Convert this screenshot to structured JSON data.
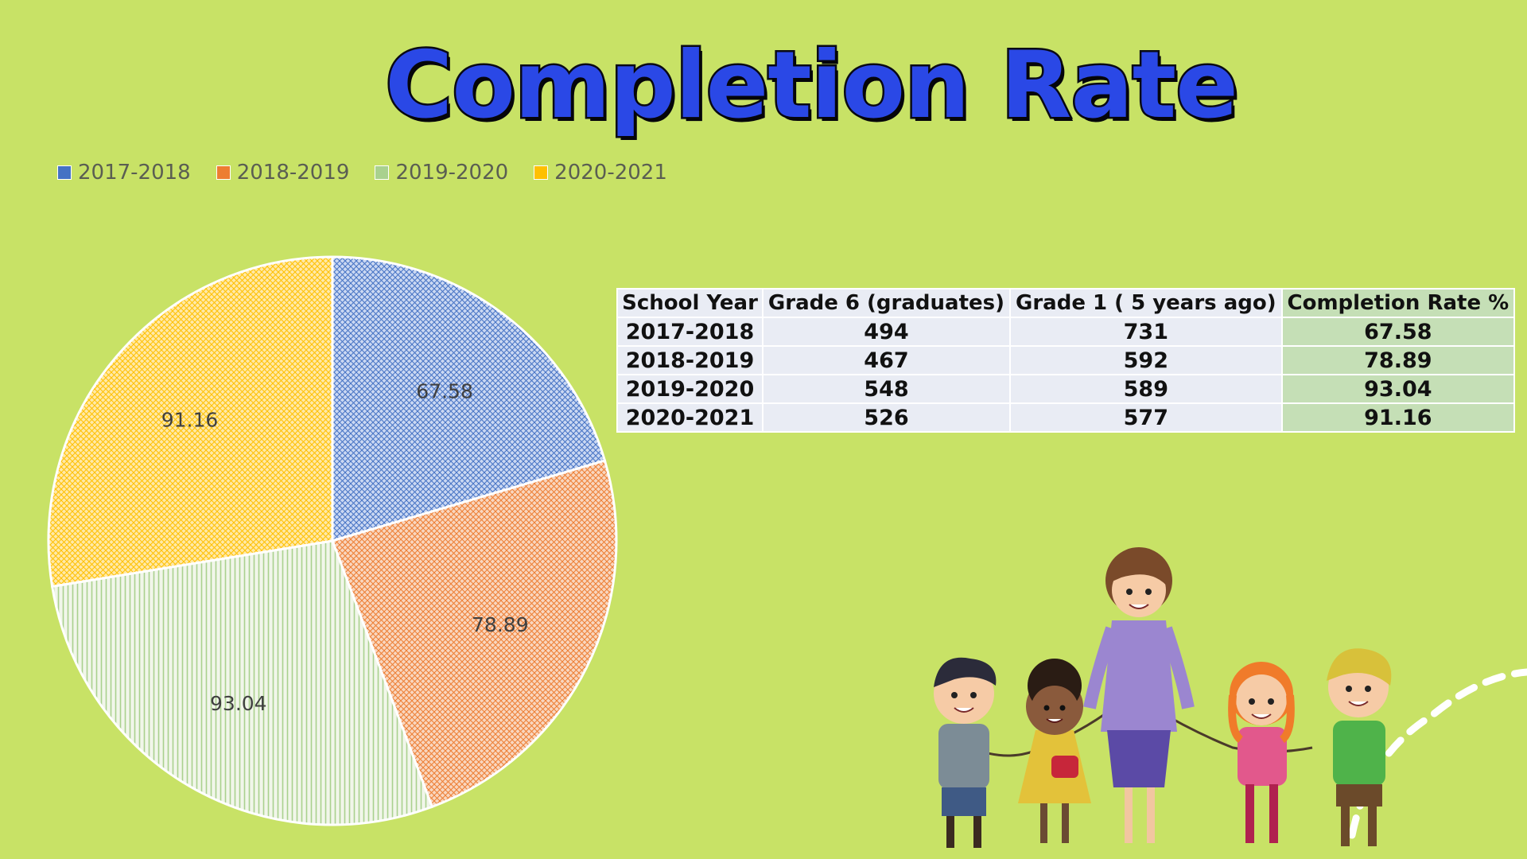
{
  "title": "Completion Rate",
  "chart_data": {
    "type": "pie",
    "title": "",
    "categories": [
      "2017-2018",
      "2018-2019",
      "2019-2020",
      "2020-2021"
    ],
    "values": [
      67.58,
      78.89,
      93.04,
      91.16
    ],
    "colors": [
      "#4472c4",
      "#ed7d31",
      "#a9d18e",
      "#ffc000"
    ],
    "legend_position": "top-left",
    "data_labels": true
  },
  "table": {
    "headers": [
      "School Year",
      "Grade 6 (graduates)",
      "Grade 1 ( 5 years ago)",
      "Completion Rate %"
    ],
    "rows": [
      [
        "2017-2018",
        "494",
        "731",
        "67.58"
      ],
      [
        "2018-2019",
        "467",
        "592",
        "78.89"
      ],
      [
        "2019-2020",
        "548",
        "589",
        "93.04"
      ],
      [
        "2020-2021",
        "526",
        "577",
        "91.16"
      ]
    ]
  }
}
